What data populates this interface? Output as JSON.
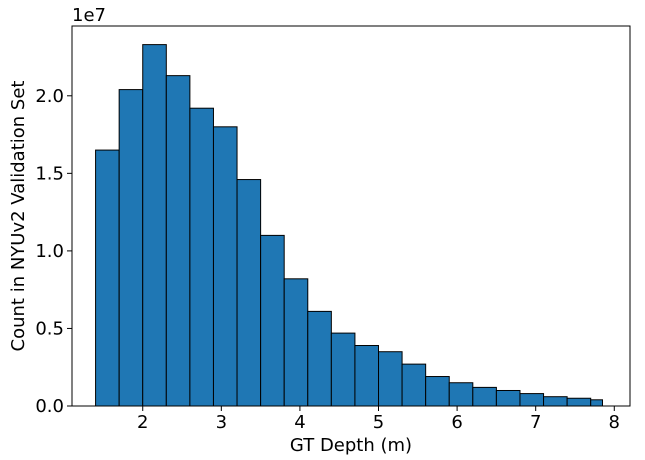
{
  "chart_data": {
    "type": "bar",
    "subtype": "histogram",
    "xlabel": "GT Depth (m)",
    "ylabel": "Count in NYUv2 Validation Set",
    "y_offset_label": "1e7",
    "bar_color": "#1f77b4",
    "edge_color": "#000000",
    "xlim": [
      1.1,
      8.2
    ],
    "ylim": [
      0,
      2.45
    ],
    "x_ticks": [
      2,
      3,
      4,
      5,
      6,
      7,
      8
    ],
    "x_tick_labels": [
      "2",
      "3",
      "4",
      "5",
      "6",
      "7",
      "8"
    ],
    "y_ticks": [
      0.0,
      0.5,
      1.0,
      1.5,
      2.0
    ],
    "y_tick_labels": [
      "0.0",
      "0.5",
      "1.0",
      "1.5",
      "2.0"
    ],
    "y_units_note": "values in units of 1e7",
    "bin_edges": [
      1.4,
      1.7,
      2.0,
      2.3,
      2.6,
      2.9,
      3.2,
      3.5,
      3.8,
      4.1,
      4.4,
      4.7,
      5.0,
      5.3,
      5.6,
      5.9,
      6.2,
      6.5,
      6.8,
      7.1,
      7.4,
      7.7,
      7.85
    ],
    "values": [
      1.65,
      2.04,
      2.33,
      2.13,
      1.92,
      1.8,
      1.46,
      1.1,
      0.82,
      0.61,
      0.47,
      0.39,
      0.35,
      0.27,
      0.19,
      0.15,
      0.12,
      0.1,
      0.08,
      0.06,
      0.05,
      0.04
    ],
    "grid": false,
    "legend": false
  }
}
